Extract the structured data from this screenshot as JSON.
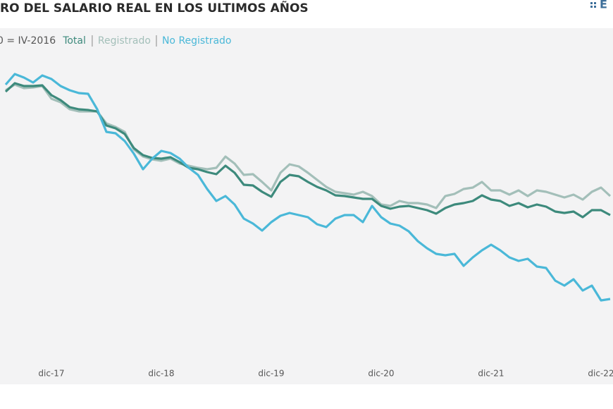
{
  "chart_data": {
    "type": "line",
    "title": "RO DEL SALARIO REAL EN LOS ULTIMOS AÑOS",
    "subtitle": "0 = IV-2016",
    "logo": "E",
    "categories": [
      null,
      null,
      null,
      null,
      null,
      "dic-17",
      null,
      null,
      null,
      null,
      null,
      null,
      null,
      null,
      null,
      null,
      null,
      "dic-18",
      null,
      null,
      null,
      null,
      null,
      null,
      null,
      null,
      null,
      null,
      null,
      "dic-19",
      null,
      null,
      null,
      null,
      null,
      null,
      null,
      null,
      null,
      null,
      null,
      "dic-20",
      null,
      null,
      null,
      null,
      null,
      null,
      null,
      null,
      null,
      null,
      null,
      "dic-21",
      null,
      null,
      null,
      null,
      null,
      null,
      null,
      null,
      null,
      null,
      null,
      "dic-22",
      null
    ],
    "ylim": [
      60,
      110
    ],
    "series": [
      {
        "name": "Total",
        "color": "#3d8a7c",
        "values": [
          101.0,
          102.2,
          101.8,
          101.8,
          101.9,
          100.5,
          99.8,
          98.8,
          98.5,
          98.4,
          98.2,
          96.2,
          95.8,
          95.0,
          93.0,
          92.0,
          91.6,
          91.5,
          91.7,
          91.0,
          90.2,
          90.0,
          89.6,
          89.3,
          90.5,
          89.5,
          87.8,
          87.7,
          86.8,
          86.1,
          88.2,
          89.2,
          89.0,
          88.2,
          87.5,
          87.0,
          86.3,
          86.2,
          86.0,
          85.8,
          85.8,
          84.8,
          84.4,
          84.7,
          84.8,
          84.5,
          84.2,
          83.7,
          84.5,
          85.0,
          85.2,
          85.5,
          86.3,
          85.7,
          85.5,
          84.8,
          85.2,
          84.6,
          85.0,
          84.7,
          84.0,
          83.8,
          84.0,
          83.2,
          84.2,
          84.2,
          83.5
        ]
      },
      {
        "name": "Registrado",
        "color": "#a3bfb9",
        "values": [
          101.2,
          102.0,
          101.5,
          101.6,
          101.8,
          100.0,
          99.5,
          98.5,
          98.2,
          98.2,
          98.2,
          96.5,
          96.0,
          95.3,
          92.8,
          91.8,
          91.4,
          91.2,
          91.5,
          90.8,
          90.5,
          90.2,
          90.0,
          90.2,
          91.8,
          90.8,
          89.2,
          89.3,
          88.2,
          87.0,
          89.5,
          90.7,
          90.4,
          89.5,
          88.5,
          87.5,
          86.8,
          86.6,
          86.4,
          86.8,
          86.2,
          85.0,
          84.8,
          85.5,
          85.2,
          85.2,
          85.0,
          84.5,
          86.2,
          86.5,
          87.2,
          87.4,
          88.2,
          87.0,
          87.0,
          86.4,
          87.0,
          86.2,
          87.0,
          86.8,
          86.4,
          86.0,
          86.4,
          85.7,
          86.8,
          87.4,
          86.2
        ]
      },
      {
        "name": "No Registrado",
        "color": "#4ab8d8",
        "values": [
          102.0,
          103.5,
          103.0,
          102.3,
          103.3,
          102.8,
          101.8,
          101.2,
          100.8,
          100.7,
          98.5,
          95.3,
          95.1,
          94.0,
          92.2,
          90.0,
          91.5,
          92.6,
          92.3,
          91.5,
          90.2,
          89.2,
          87.2,
          85.5,
          86.2,
          85.0,
          83.0,
          82.3,
          81.3,
          82.5,
          83.4,
          83.8,
          83.5,
          83.2,
          82.2,
          81.8,
          83.0,
          83.5,
          83.5,
          82.5,
          84.8,
          83.2,
          82.3,
          82.0,
          81.2,
          79.8,
          78.8,
          78.0,
          77.8,
          78.0,
          76.3,
          77.5,
          78.5,
          79.3,
          78.5,
          77.5,
          77.0,
          77.3,
          76.2,
          76.0,
          74.2,
          73.5,
          74.4,
          72.8,
          73.5,
          71.4,
          71.6
        ]
      }
    ]
  }
}
